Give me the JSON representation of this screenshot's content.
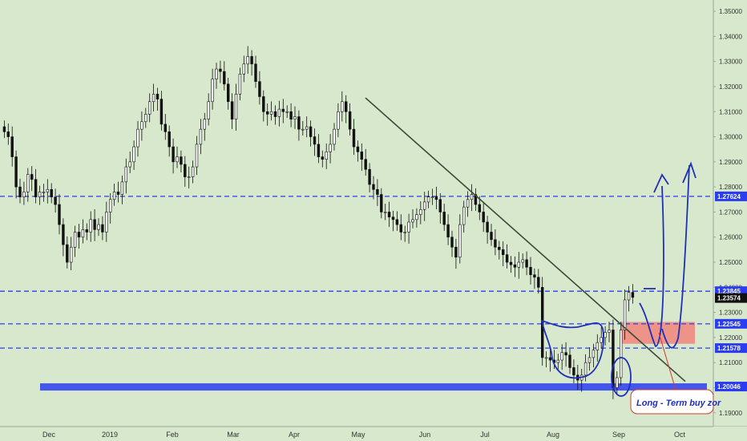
{
  "chart_data": {
    "type": "candlestick",
    "y_axis": {
      "ylim": [
        1.1845,
        1.3545
      ],
      "side": "right",
      "ticks": [
        "1.35000",
        "1.34000",
        "1.33000",
        "1.32000",
        "1.31000",
        "1.30000",
        "1.29000",
        "1.28000",
        "1.27000",
        "1.26000",
        "1.25000",
        "1.24000",
        "1.23000",
        "1.22000",
        "1.21000",
        "1.20000",
        "1.19000"
      ]
    },
    "x_axis": {
      "labels": [
        "Dec",
        "2019",
        "Feb",
        "Mar",
        "Apr",
        "May",
        "Jun",
        "Jul",
        "Aug",
        "Sep",
        "Oct"
      ]
    },
    "level_badges": [
      {
        "label": "1.27624",
        "value": 1.27624,
        "color": "#2b3df0"
      },
      {
        "label": "1.23845",
        "value": 1.23845,
        "color": "#2b3df0"
      },
      {
        "label": "1.23574",
        "value": 1.23574,
        "color": "#111111"
      },
      {
        "label": "1.22545",
        "value": 1.22545,
        "color": "#2b3df0"
      },
      {
        "label": "1.21578",
        "value": 1.21578,
        "color": "#2b3df0"
      },
      {
        "label": "1.20046",
        "value": 1.20046,
        "color": "#2b3df0"
      }
    ],
    "grid": false,
    "colors": {
      "background": "#d7e8cd",
      "candle_up": "#ffffff",
      "candle_down": "#111111",
      "levels": "#2b3df0",
      "trendline": "#3a4a3a",
      "zone": "#f08a80"
    },
    "closes": [
      1.302,
      1.3,
      1.292,
      1.28,
      1.276,
      1.278,
      1.285,
      1.283,
      1.276,
      1.278,
      1.278,
      1.279,
      1.276,
      1.273,
      1.265,
      1.257,
      1.25,
      1.256,
      1.262,
      1.26,
      1.263,
      1.262,
      1.267,
      1.263,
      1.265,
      1.262,
      1.27,
      1.275,
      1.278,
      1.277,
      1.282,
      1.288,
      1.29,
      1.296,
      1.303,
      1.306,
      1.309,
      1.314,
      1.317,
      1.315,
      1.305,
      1.302,
      1.296,
      1.29,
      1.292,
      1.289,
      1.284,
      1.284,
      1.288,
      1.297,
      1.303,
      1.307,
      1.314,
      1.323,
      1.327,
      1.326,
      1.321,
      1.314,
      1.307,
      1.317,
      1.325,
      1.329,
      1.332,
      1.329,
      1.322,
      1.316,
      1.31,
      1.309,
      1.31,
      1.308,
      1.311,
      1.31,
      1.31,
      1.307,
      1.308,
      1.303,
      1.303,
      1.304,
      1.3,
      1.297,
      1.292,
      1.291,
      1.294,
      1.297,
      1.303,
      1.31,
      1.314,
      1.31,
      1.303,
      1.296,
      1.294,
      1.291,
      1.287,
      1.281,
      1.279,
      1.277,
      1.27,
      1.27,
      1.268,
      1.267,
      1.265,
      1.262,
      1.262,
      1.266,
      1.267,
      1.269,
      1.271,
      1.274,
      1.276,
      1.276,
      1.275,
      1.27,
      1.265,
      1.26,
      1.256,
      1.252,
      1.265,
      1.272,
      1.275,
      1.277,
      1.273,
      1.27,
      1.266,
      1.262,
      1.259,
      1.256,
      1.255,
      1.253,
      1.25,
      1.249,
      1.248,
      1.25,
      1.251,
      1.248,
      1.245,
      1.244,
      1.24,
      1.212,
      1.212,
      1.211,
      1.21,
      1.211,
      1.214,
      1.213,
      1.208,
      1.205,
      1.203,
      1.205,
      1.21,
      1.212,
      1.215,
      1.218,
      1.22,
      1.222,
      1.223,
      1.2,
      1.204,
      1.223,
      1.235,
      1.238,
      1.236
    ]
  },
  "annotations": {
    "buy_zone_label": "Long - Term buy zor"
  }
}
